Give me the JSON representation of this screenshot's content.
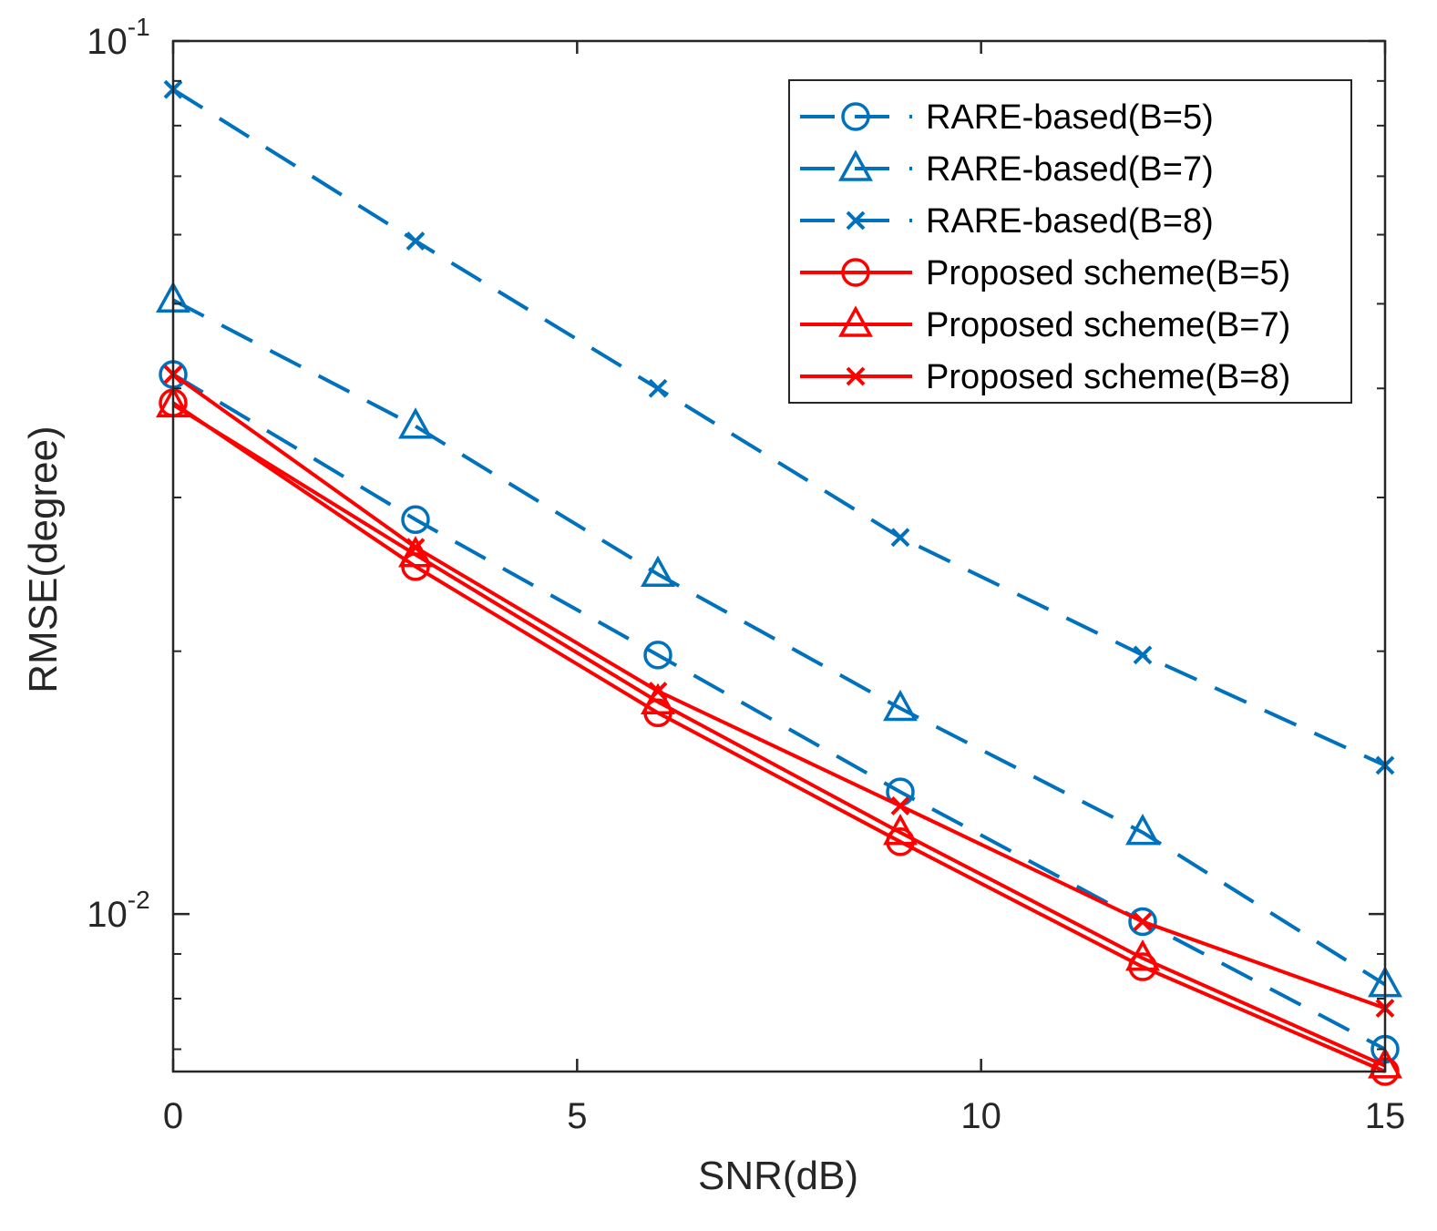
{
  "chart_data": {
    "type": "line",
    "title": "",
    "xlabel": "SNR(dB)",
    "ylabel": "RMSE(degree)",
    "xlim": [
      0,
      15
    ],
    "ylim": [
      0.0066,
      0.1
    ],
    "yscale": "log",
    "grid": false,
    "legend_position": "top-right",
    "x_ticks": [
      0,
      5,
      10,
      15
    ],
    "x_tick_labels": [
      "0",
      "5",
      "10",
      "15"
    ],
    "y_ticks": [
      {
        "value": 0.1,
        "base": "10",
        "exp": "-1"
      },
      {
        "value": 0.01,
        "base": "10",
        "exp": "-2"
      }
    ],
    "x": [
      0,
      3,
      6,
      9,
      12,
      15
    ],
    "series": [
      {
        "name": "RARE-based(B=5)",
        "color": "#0072BD",
        "style": "dashed",
        "marker": "circle",
        "values": [
          0.0415,
          0.0283,
          0.0198,
          0.0138,
          0.0098,
          0.007
        ]
      },
      {
        "name": "RARE-based(B=7)",
        "color": "#0072BD",
        "style": "dashed",
        "marker": "triangle",
        "values": [
          0.0505,
          0.0362,
          0.0245,
          0.0172,
          0.0124,
          0.0083
        ]
      },
      {
        "name": "RARE-based(B=8)",
        "color": "#0072BD",
        "style": "dashed",
        "marker": "x",
        "values": [
          0.088,
          0.059,
          0.04,
          0.027,
          0.0198,
          0.0148
        ]
      },
      {
        "name": "Proposed scheme(B=5)",
        "color": "#FF0000",
        "style": "solid",
        "marker": "circle",
        "values": [
          0.0385,
          0.025,
          0.017,
          0.0121,
          0.0087,
          0.0066
        ]
      },
      {
        "name": "Proposed scheme(B=7)",
        "color": "#FF0000",
        "style": "solid",
        "marker": "triangle",
        "values": [
          0.0383,
          0.0258,
          0.0175,
          0.0124,
          0.0089,
          0.0067
        ]
      },
      {
        "name": "Proposed scheme(B=8)",
        "color": "#FF0000",
        "style": "solid",
        "marker": "x",
        "values": [
          0.0415,
          0.0263,
          0.018,
          0.0133,
          0.0098,
          0.0078
        ]
      }
    ]
  }
}
